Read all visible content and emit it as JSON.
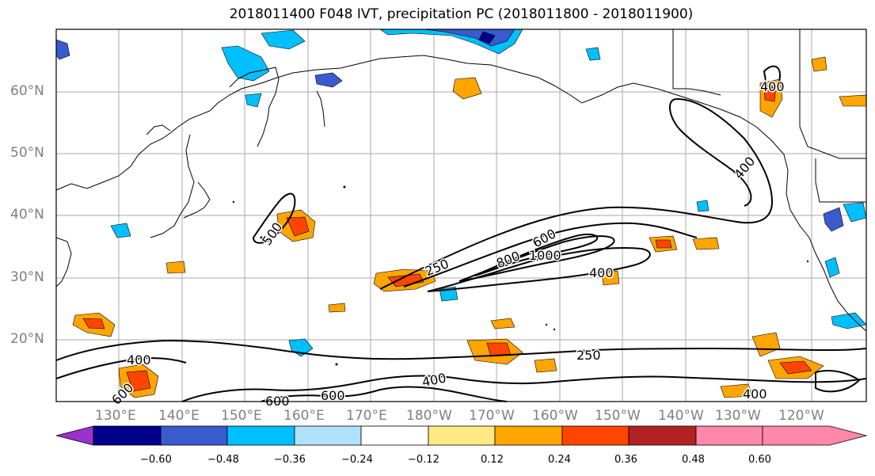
{
  "title": "2018011400 F048 IVT, precipitation PC (2018011800 - 2018011900)",
  "lat_labels": [
    "60°N",
    "50°N",
    "40°N",
    "30°N",
    "20°N"
  ],
  "lon_labels": [
    "130°E",
    "140°E",
    "150°E",
    "160°E",
    "170°E",
    "180°W",
    "170°W",
    "160°W",
    "150°W",
    "140°W",
    "130°W",
    "120°W"
  ],
  "contour_labels": [
    "400",
    "600",
    "800",
    "1000",
    "250",
    "400",
    "400",
    "250",
    "400",
    "600",
    "600",
    "400",
    "500",
    "400",
    "600"
  ],
  "colorbar": {
    "colors": [
      "#9933cc",
      "#00008b",
      "#3a5bcd",
      "#00bfff",
      "#b0e2ff",
      "#ffffff",
      "#ffe985",
      "#ffa500",
      "#ff4500",
      "#b22222",
      "#ff88aa"
    ],
    "tick_labels": [
      "−0.60",
      "−0.48",
      "−0.36",
      "−0.24",
      "−0.12",
      "0.12",
      "0.24",
      "0.36",
      "0.48",
      "0.60"
    ]
  }
}
